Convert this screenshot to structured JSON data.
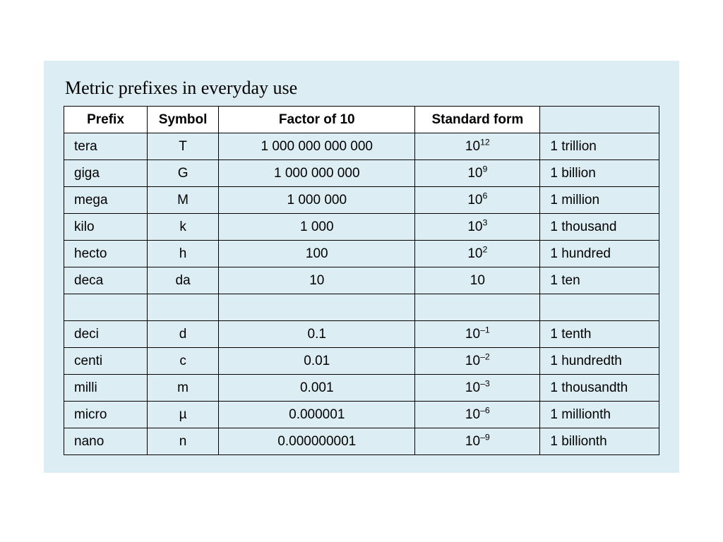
{
  "panel": {
    "background_color": "#dcedf4",
    "row_background_color": "#dcedf4",
    "header_background_color": "#ffffff",
    "border_color": "#000000",
    "text_color": "#000000"
  },
  "title": "Metric prefixes in everyday use",
  "columns": [
    "Prefix",
    "Symbol",
    "Factor of 10",
    "Standard form",
    ""
  ],
  "rows": [
    {
      "prefix": "tera",
      "symbol": "T",
      "factor": "1 000 000 000 000",
      "std_base": "10",
      "std_exp": "12",
      "desc": "1 trillion"
    },
    {
      "prefix": "giga",
      "symbol": "G",
      "factor": "1 000 000 000",
      "std_base": "10",
      "std_exp": "9",
      "desc": "1 billion"
    },
    {
      "prefix": "mega",
      "symbol": "M",
      "factor": "1 000 000",
      "std_base": "10",
      "std_exp": "6",
      "desc": "1 million"
    },
    {
      "prefix": "kilo",
      "symbol": "k",
      "factor": "1 000",
      "std_base": "10",
      "std_exp": "3",
      "desc": "1 thousand"
    },
    {
      "prefix": "hecto",
      "symbol": "h",
      "factor": "100",
      "std_base": "10",
      "std_exp": "2",
      "desc": "1 hundred"
    },
    {
      "prefix": "deca",
      "symbol": "da",
      "factor": "10",
      "std_base": "10",
      "std_exp": "",
      "desc": "1 ten"
    },
    {
      "empty": true
    },
    {
      "prefix": "deci",
      "symbol": "d",
      "factor": "0.1",
      "std_base": "10",
      "std_exp": "–1",
      "desc": "1 tenth"
    },
    {
      "prefix": "centi",
      "symbol": "c",
      "factor": "0.01",
      "std_base": "10",
      "std_exp": "–2",
      "desc": "1 hundredth"
    },
    {
      "prefix": "milli",
      "symbol": "m",
      "factor": "0.001",
      "std_base": "10",
      "std_exp": "–3",
      "desc": "1 thousandth"
    },
    {
      "prefix": "micro",
      "symbol": "µ",
      "factor": "0.000001",
      "std_base": "10",
      "std_exp": "–6",
      "desc": "1 millionth"
    },
    {
      "prefix": "nano",
      "symbol": "n",
      "factor": "0.000000001",
      "std_base": "10",
      "std_exp": "–9",
      "desc": "1 billionth"
    }
  ]
}
